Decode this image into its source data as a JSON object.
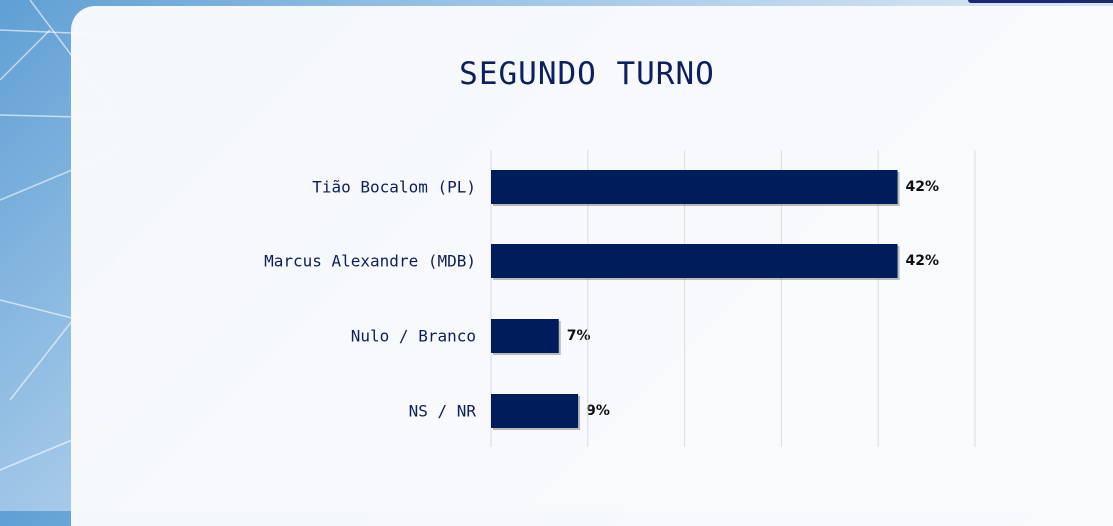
{
  "chart_data": {
    "type": "bar",
    "orientation": "horizontal",
    "title": "SEGUNDO TURNO",
    "categories": [
      "Tião Bocalom (PL)",
      "Marcus Alexandre (MDB)",
      "Nulo / Branco",
      "NS / NR"
    ],
    "values": [
      42,
      42,
      7,
      9
    ],
    "data_labels": [
      "42%",
      "42%",
      "7%",
      "9%"
    ],
    "xlim": [
      0,
      50
    ],
    "grid": true,
    "gridline_step": 10,
    "bar_color": "#001c5a"
  }
}
